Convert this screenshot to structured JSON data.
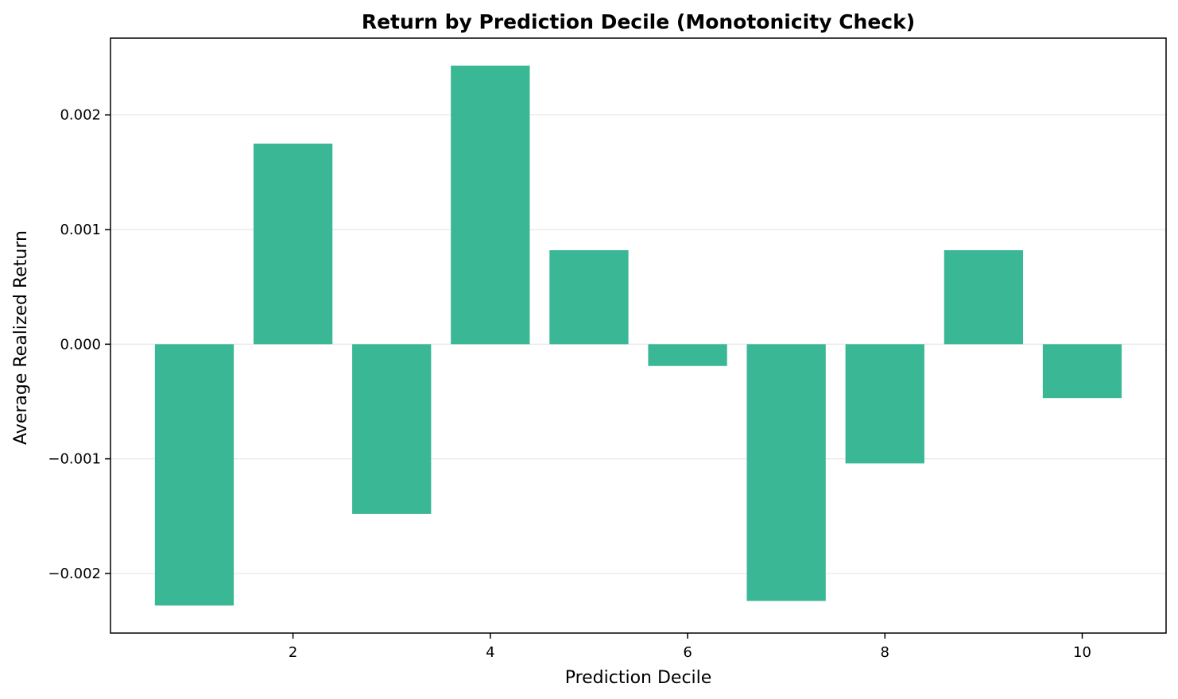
{
  "chart_data": {
    "type": "bar",
    "title": "Return by Prediction Decile (Monotonicity Check)",
    "xlabel": "Prediction Decile",
    "ylabel": "Average Realized Return",
    "categories": [
      1,
      2,
      3,
      4,
      5,
      6,
      7,
      8,
      9,
      10
    ],
    "values": [
      -0.00228,
      0.00175,
      -0.00148,
      0.00243,
      0.00082,
      -0.00019,
      -0.00224,
      -0.00104,
      0.00082,
      -0.00047
    ],
    "xlim": [
      0.15,
      10.85
    ],
    "ylim": [
      -0.00252,
      0.00267
    ],
    "x_ticks": [
      2,
      4,
      6,
      8,
      10
    ],
    "x_tick_labels": [
      "2",
      "4",
      "6",
      "8",
      "10"
    ],
    "y_ticks": [
      -0.002,
      -0.001,
      0.0,
      0.001,
      0.002
    ],
    "y_tick_labels": [
      "−0.002",
      "−0.001",
      "0.000",
      "0.001",
      "0.002"
    ],
    "bar_color": "#3ab795",
    "grid": "horizontal",
    "grid_color": "#e6e6e6"
  }
}
